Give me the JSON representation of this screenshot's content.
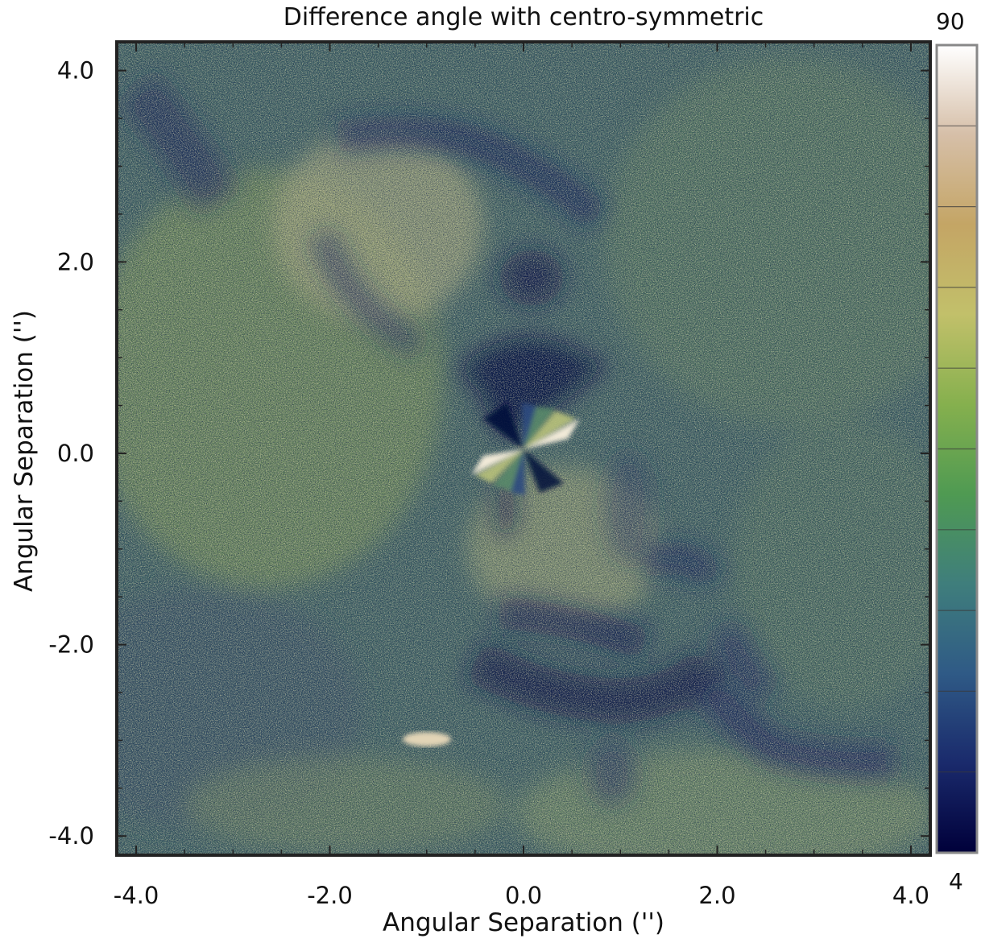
{
  "chart_data": {
    "type": "heatmap",
    "title": "Difference angle with centro-symmetric",
    "xlabel": "Angular Separation ('')",
    "ylabel": "Angular Separation ('')",
    "xlim": [
      -4.2,
      4.2
    ],
    "ylim": [
      -4.2,
      4.3
    ],
    "xticks": [
      "-4.0",
      "-2.0",
      "0.0",
      "2.0",
      "4.0"
    ],
    "xtick_values": [
      -4.0,
      -2.0,
      0.0,
      2.0,
      4.0
    ],
    "yticks": [
      "4.0",
      "2.0",
      "0.0",
      "-2.0",
      "-4.0"
    ],
    "ytick_values": [
      4.0,
      2.0,
      0.0,
      -2.0,
      -4.0
    ],
    "colorbar": {
      "min": 4,
      "max": 90,
      "min_label": "4",
      "max_label": "90",
      "colormap": [
        "#00003a",
        "#1a2a6c",
        "#2f5a86",
        "#3f7e7c",
        "#4f9a52",
        "#86b04e",
        "#c2c06a",
        "#c4a565",
        "#d6bfa8",
        "#ffffff"
      ]
    },
    "features": [
      {
        "name": "central butterfly pattern",
        "x": 0.0,
        "y": 0.0,
        "value": "high"
      },
      {
        "name": "bright blob",
        "x": -1.0,
        "y": -3.05,
        "value": "high"
      },
      {
        "name": "dark arc north-west",
        "x": -0.6,
        "y": 2.2,
        "value": "low"
      },
      {
        "name": "dark arc south",
        "x": 0.9,
        "y": -2.3,
        "value": "low"
      },
      {
        "name": "dark streak south-east",
        "x": 2.6,
        "y": -3.0,
        "value": "low"
      }
    ],
    "grid": false
  }
}
